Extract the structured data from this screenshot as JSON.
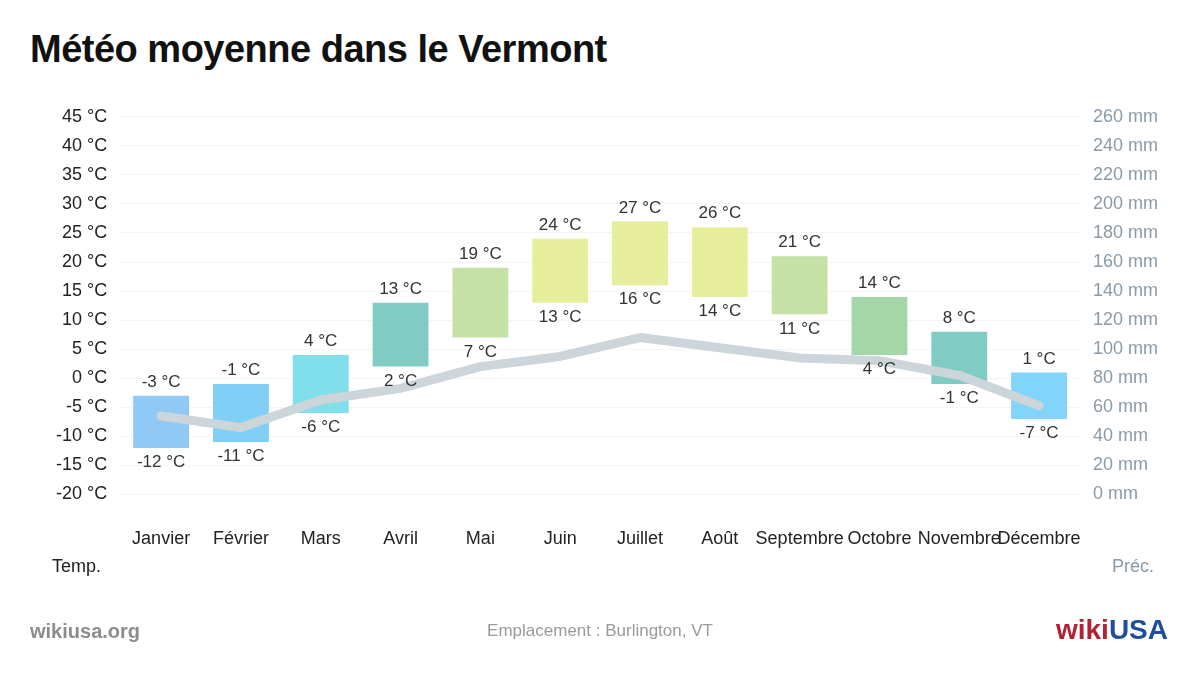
{
  "chart_data": {
    "type": "bar",
    "title": "Météo moyenne dans le Vermont",
    "categories": [
      "Janvier",
      "Février",
      "Mars",
      "Avril",
      "Mai",
      "Juin",
      "Juillet",
      "Août",
      "Septembre",
      "Octobre",
      "Novembre",
      "Décembre"
    ],
    "ylabel": "Temp.",
    "y2label": "Préc.",
    "footer_left": "wikiusa.org",
    "footer_center": "Emplacement : Burlington, VT",
    "logo": [
      "wiki",
      "USA"
    ],
    "grid": true,
    "data_labels": true,
    "ylim": [
      -20,
      45
    ],
    "yticks": [
      {
        "value": -20,
        "label": "-20 °C"
      },
      {
        "value": -15,
        "label": "-15 °C"
      },
      {
        "value": -10,
        "label": "-10 °C"
      },
      {
        "value": -5,
        "label": "-5 °C"
      },
      {
        "value": 0,
        "label": "0 °C"
      },
      {
        "value": 5,
        "label": "5 °C"
      },
      {
        "value": 10,
        "label": "10 °C"
      },
      {
        "value": 15,
        "label": "15 °C"
      },
      {
        "value": 20,
        "label": "20 °C"
      },
      {
        "value": 25,
        "label": "25 °C"
      },
      {
        "value": 30,
        "label": "30 °C"
      },
      {
        "value": 35,
        "label": "35 °C"
      },
      {
        "value": 40,
        "label": "40 °C"
      },
      {
        "value": 45,
        "label": "45 °C"
      }
    ],
    "y2lim": [
      0,
      260
    ],
    "y2ticks": [
      {
        "value": 0,
        "label": "0 mm"
      },
      {
        "value": 20,
        "label": "20 mm"
      },
      {
        "value": 40,
        "label": "40 mm"
      },
      {
        "value": 60,
        "label": "60 mm"
      },
      {
        "value": 80,
        "label": "80 mm"
      },
      {
        "value": 100,
        "label": "100 mm"
      },
      {
        "value": 120,
        "label": "120 mm"
      },
      {
        "value": 140,
        "label": "140 mm"
      },
      {
        "value": 160,
        "label": "160 mm"
      },
      {
        "value": 180,
        "label": "180 mm"
      },
      {
        "value": 200,
        "label": "200 mm"
      },
      {
        "value": 220,
        "label": "220 mm"
      },
      {
        "value": 240,
        "label": "240 mm"
      },
      {
        "value": 260,
        "label": "260 mm"
      }
    ],
    "series": [
      {
        "type": "bar",
        "values": [
          [
            -12,
            -3
          ],
          [
            -11,
            -1
          ],
          [
            -6,
            4
          ],
          [
            2,
            13
          ],
          [
            7,
            19
          ],
          [
            13,
            24
          ],
          [
            16,
            27
          ],
          [
            14,
            26
          ],
          [
            11,
            21
          ],
          [
            4,
            14
          ],
          [
            -1,
            8
          ],
          [
            -7,
            1
          ]
        ],
        "value_labels": [
          [
            "-12 °C",
            "-3 °C"
          ],
          [
            "-11 °C",
            "-1 °C"
          ],
          [
            "-6 °C",
            "4 °C"
          ],
          [
            "2 °C",
            "13 °C"
          ],
          [
            "7 °C",
            "19 °C"
          ],
          [
            "13 °C",
            "24 °C"
          ],
          [
            "16 °C",
            "27 °C"
          ],
          [
            "14 °C",
            "26 °C"
          ],
          [
            "11 °C",
            "21 °C"
          ],
          [
            "4 °C",
            "14 °C"
          ],
          [
            "-1 °C",
            "8 °C"
          ],
          [
            "-7 °C",
            "1 °C"
          ]
        ],
        "colors": [
          "#90c8f6",
          "#80cff6",
          "#80dfea",
          "#80cbc4",
          "#c5e1a5",
          "#e6ee9c",
          "#e6ee9c",
          "#e6ee9c",
          "#c5e1a5",
          "#a5d6a7",
          "#80cbc4",
          "#81d4fa"
        ]
      },
      {
        "type": "line",
        "axis": "y2",
        "values": [
          54,
          46,
          65,
          73,
          88,
          95,
          108,
          101,
          94,
          92,
          82,
          61
        ],
        "color": "#ccd5da"
      }
    ]
  }
}
